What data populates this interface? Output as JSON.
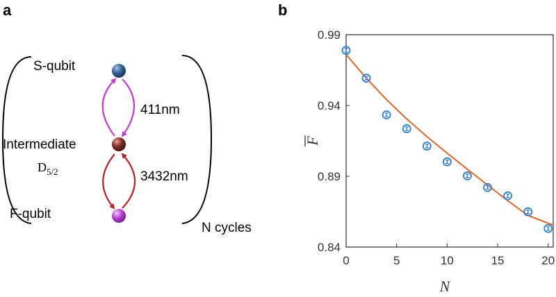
{
  "panels": {
    "a": "a",
    "b": "b"
  },
  "diagram": {
    "s_qubit": "S-qubit",
    "intermediate": "Intermediate",
    "f_qubit": "F-qubit",
    "level_base": "D",
    "level_sub": "5/2",
    "wavelength_top": "411nm",
    "wavelength_bottom": "3432nm",
    "cycles": "N cycles",
    "colors": {
      "s_ball": "#2f5f93",
      "intermediate_ball": "#7a2a22",
      "f_ball": "#b63fd0",
      "arrow_top": "#c23ad6",
      "arrow_bottom": "#b3242c"
    }
  },
  "chart_data": {
    "type": "scatter",
    "xlabel": "N",
    "ylabel": "F",
    "ylabel_overline": true,
    "xlim": [
      0,
      20.5
    ],
    "ylim": [
      0.84,
      0.99
    ],
    "xticks": [
      "0",
      "5",
      "10",
      "15",
      "20"
    ],
    "yticks": [
      "0.84",
      "0.89",
      "0.94",
      "0.99"
    ],
    "grid": false,
    "series": [
      {
        "kind": "points",
        "color": "#2a7fd4",
        "x": [
          0,
          2,
          4,
          6,
          8,
          10,
          12,
          14,
          16,
          18,
          20
        ],
        "y": [
          0.9789,
          0.9593,
          0.9334,
          0.9236,
          0.9113,
          0.9002,
          0.8903,
          0.8821,
          0.8762,
          0.8649,
          0.8531
        ],
        "err": [
          0.0012,
          0.0012,
          0.0012,
          0.0012,
          0.0012,
          0.0012,
          0.0012,
          0.0012,
          0.0012,
          0.0012,
          0.0012
        ]
      },
      {
        "kind": "fit",
        "color": "#e0672a",
        "x": [
          0,
          2,
          4,
          6,
          8,
          10,
          12,
          14,
          16,
          18,
          20.5
        ],
        "y": [
          0.976,
          0.9593,
          0.9442,
          0.9305,
          0.918,
          0.9063,
          0.895,
          0.8838,
          0.8727,
          0.8623,
          0.8555
        ]
      }
    ]
  }
}
